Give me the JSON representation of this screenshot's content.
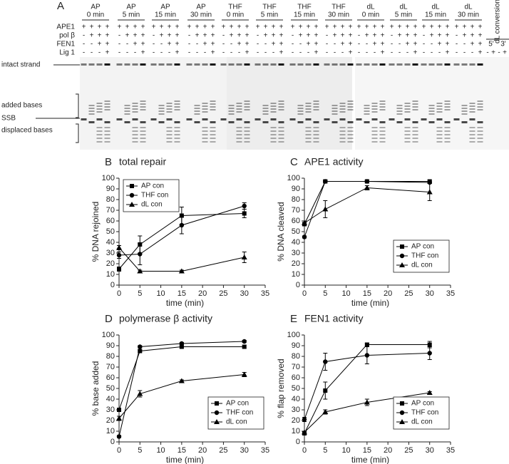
{
  "gel": {
    "panel": "A",
    "groups": [
      {
        "name": "AP",
        "time": "0 min"
      },
      {
        "name": "AP",
        "time": "5 min"
      },
      {
        "name": "AP",
        "time": "15 min"
      },
      {
        "name": "AP",
        "time": "30 min"
      },
      {
        "name": "THF",
        "time": "0 min"
      },
      {
        "name": "THF",
        "time": "5 min"
      },
      {
        "name": "THF",
        "time": "15 min"
      },
      {
        "name": "THF",
        "time": "30 min"
      },
      {
        "name": "dL",
        "time": "0 min"
      },
      {
        "name": "dL",
        "time": "5 min"
      },
      {
        "name": "dL",
        "time": "15 min"
      },
      {
        "name": "dL",
        "time": "30 min"
      }
    ],
    "sign_rows": [
      {
        "label": "APE1",
        "signs": [
          "+",
          "+",
          "+",
          "+"
        ]
      },
      {
        "label": "pol β",
        "signs": [
          "-",
          "+",
          "+",
          "+"
        ]
      },
      {
        "label": "FEN1",
        "signs": [
          "-",
          "-",
          "+",
          "+"
        ]
      },
      {
        "label": "Lig 1",
        "signs": [
          "-",
          "-",
          "-",
          "+"
        ]
      }
    ],
    "conversion": {
      "label": "dL conversion",
      "ends": [
        "5'",
        "3'"
      ],
      "signs": [
        "-",
        "+",
        "-",
        "+"
      ]
    },
    "band_labels": [
      "intact strand",
      "added bases",
      "SSB",
      "displaced bases"
    ]
  },
  "chart_data": [
    {
      "type": "line",
      "panel": "B",
      "title": "total repair",
      "xlabel": "time (min)",
      "ylabel": "% DNA rejoined",
      "x": [
        0,
        5,
        15,
        30
      ],
      "xlim": [
        0,
        35
      ],
      "xticks": [
        0,
        5,
        10,
        15,
        20,
        25,
        30,
        35
      ],
      "ylim": [
        0,
        100
      ],
      "yticks": [
        0,
        10,
        20,
        30,
        40,
        50,
        60,
        70,
        80,
        90,
        100
      ],
      "legend": "upper left",
      "series": [
        {
          "name": "AP con",
          "color": "#000000",
          "marker": "square",
          "values": [
            15,
            38,
            65,
            67
          ],
          "errors": [
            2,
            8,
            8,
            4
          ]
        },
        {
          "name": "THF con",
          "color": "#000000",
          "marker": "circle",
          "values": [
            28,
            29,
            56,
            74
          ],
          "errors": [
            3,
            10,
            8,
            3
          ]
        },
        {
          "name": "dL con",
          "color": "#000000",
          "marker": "triangle",
          "values": [
            35,
            13,
            13,
            26
          ],
          "errors": [
            2,
            1,
            1,
            5
          ]
        }
      ]
    },
    {
      "type": "line",
      "panel": "C",
      "title": "APE1 activity",
      "xlabel": "time (min)",
      "ylabel": "% DNA cleaved",
      "x": [
        0,
        5,
        15,
        30
      ],
      "xlim": [
        0,
        35
      ],
      "xticks": [
        0,
        5,
        10,
        15,
        20,
        25,
        30,
        35
      ],
      "ylim": [
        0,
        100
      ],
      "yticks": [
        0,
        10,
        20,
        30,
        40,
        50,
        60,
        70,
        80,
        90,
        100
      ],
      "legend": "lower right",
      "series": [
        {
          "name": "AP con",
          "color": "#000000",
          "marker": "square",
          "values": [
            57,
            97,
            97,
            97
          ],
          "errors": [
            1,
            1,
            1,
            1
          ]
        },
        {
          "name": "THF con",
          "color": "#000000",
          "marker": "circle",
          "values": [
            45,
            97,
            97,
            96
          ],
          "errors": [
            1,
            1,
            1,
            1
          ]
        },
        {
          "name": "dL con",
          "color": "#000000",
          "marker": "triangle",
          "values": [
            58,
            71,
            91,
            87
          ],
          "errors": [
            2,
            8,
            2,
            8
          ]
        }
      ]
    },
    {
      "type": "line",
      "panel": "D",
      "title": "polymerase β activity",
      "xlabel": "time (min)",
      "ylabel": "% base added",
      "x": [
        0,
        5,
        15,
        30
      ],
      "xlim": [
        0,
        35
      ],
      "xticks": [
        0,
        5,
        10,
        15,
        20,
        25,
        30,
        35
      ],
      "ylim": [
        0,
        100
      ],
      "yticks": [
        0,
        10,
        20,
        30,
        40,
        50,
        60,
        70,
        80,
        90,
        100
      ],
      "legend": "lower right",
      "series": [
        {
          "name": "AP con",
          "color": "#000000",
          "marker": "square",
          "values": [
            30,
            85,
            89,
            89
          ],
          "errors": [
            1,
            1,
            1,
            1
          ]
        },
        {
          "name": "THF con",
          "color": "#000000",
          "marker": "circle",
          "values": [
            5,
            89,
            92,
            94
          ],
          "errors": [
            1,
            1,
            1,
            1
          ]
        },
        {
          "name": "dL con",
          "color": "#000000",
          "marker": "triangle",
          "values": [
            22,
            45,
            57,
            63
          ],
          "errors": [
            2,
            3,
            1,
            2
          ]
        }
      ]
    },
    {
      "type": "line",
      "panel": "E",
      "title": "FEN1 activity",
      "xlabel": "time (min)",
      "ylabel": "% flap removed",
      "x": [
        0,
        5,
        15,
        30
      ],
      "xlim": [
        0,
        35
      ],
      "xticks": [
        0,
        5,
        10,
        15,
        20,
        25,
        30,
        35
      ],
      "ylim": [
        0,
        100
      ],
      "yticks": [
        0,
        10,
        20,
        30,
        40,
        50,
        60,
        70,
        80,
        90,
        100
      ],
      "legend": "lower right",
      "series": [
        {
          "name": "AP con",
          "color": "#000000",
          "marker": "square",
          "values": [
            8,
            48,
            91,
            91
          ],
          "errors": [
            1,
            8,
            1,
            3
          ]
        },
        {
          "name": "THF con",
          "color": "#000000",
          "marker": "circle",
          "values": [
            21,
            75,
            81,
            83
          ],
          "errors": [
            2,
            8,
            8,
            6
          ]
        },
        {
          "name": "dL con",
          "color": "#000000",
          "marker": "triangle",
          "values": [
            9,
            28,
            37,
            46
          ],
          "errors": [
            1,
            2,
            3,
            1
          ]
        }
      ]
    }
  ]
}
